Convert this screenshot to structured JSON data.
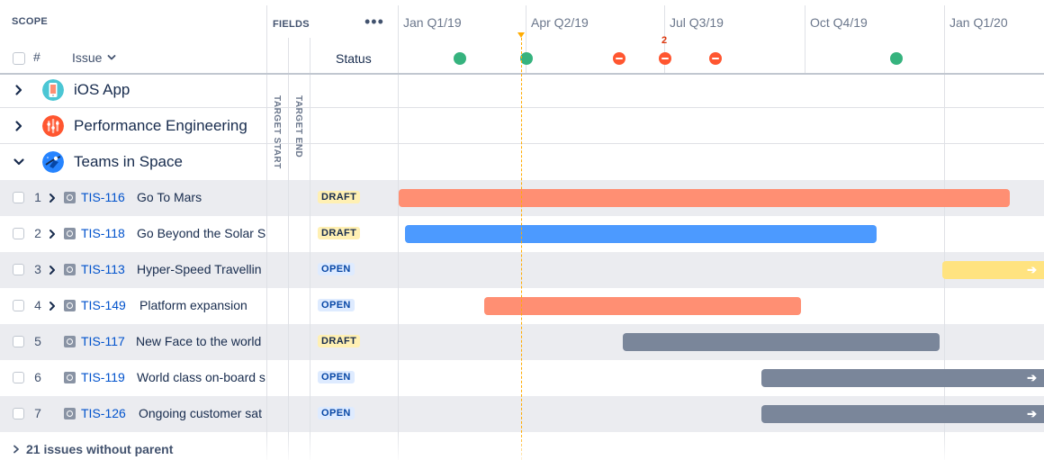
{
  "header": {
    "scope_label": "SCOPE",
    "hash_label": "#",
    "issue_label": "Issue",
    "fields_label": "FIELDS",
    "more_label": "•••",
    "status_label": "Status",
    "target_start_label": "TARGET START",
    "target_end_label": "TARGET END"
  },
  "timeline": {
    "quarters": [
      "Jan Q1/19",
      "Apr Q2/19",
      "Jul Q3/19",
      "Oct Q4/19",
      "Jan Q1/20"
    ],
    "milestones": [
      {
        "type": "on-track",
        "color": "#36b37e"
      },
      {
        "type": "on-track",
        "color": "#36b37e"
      },
      {
        "type": "blocked",
        "color": "#ff5630"
      },
      {
        "type": "blocked",
        "color": "#ff5630",
        "count": "2"
      },
      {
        "type": "blocked",
        "color": "#ff5630"
      },
      {
        "type": "on-track",
        "color": "#36b37e"
      }
    ],
    "today_color": "#ffab00"
  },
  "groups": [
    {
      "label": "iOS App",
      "icon": "ios-app-icon",
      "expanded": false
    },
    {
      "label": "Performance Engineering",
      "icon": "performance-icon",
      "expanded": false
    },
    {
      "label": "Teams in Space",
      "icon": "teams-in-space-icon",
      "expanded": true
    }
  ],
  "issues": [
    {
      "num": "1",
      "key": "TIS-116",
      "title": "Go To Mars",
      "status": "DRAFT",
      "has_children": true,
      "bar_color": "#ff8f73"
    },
    {
      "num": "2",
      "key": "TIS-118",
      "title": "Go Beyond the Solar S",
      "status": "DRAFT",
      "has_children": true,
      "bar_color": "#4c9aff"
    },
    {
      "num": "3",
      "key": "TIS-113",
      "title": "Hyper-Speed Travellin",
      "status": "OPEN",
      "has_children": true,
      "bar_color": "#ffe380"
    },
    {
      "num": "4",
      "key": "TIS-149",
      "title": "Platform expansion",
      "status": "OPEN",
      "has_children": true,
      "bar_color": "#ff8f73"
    },
    {
      "num": "5",
      "key": "TIS-117",
      "title": "New Face to the world",
      "status": "DRAFT",
      "has_children": false,
      "bar_color": "#7a869a"
    },
    {
      "num": "6",
      "key": "TIS-119",
      "title": "World class on-board s",
      "status": "OPEN",
      "has_children": false,
      "bar_color": "#7a869a"
    },
    {
      "num": "7",
      "key": "TIS-126",
      "title": "Ongoing customer sat",
      "status": "OPEN",
      "has_children": false,
      "bar_color": "#7a869a"
    }
  ],
  "footer": {
    "label": "21 issues without parent"
  }
}
